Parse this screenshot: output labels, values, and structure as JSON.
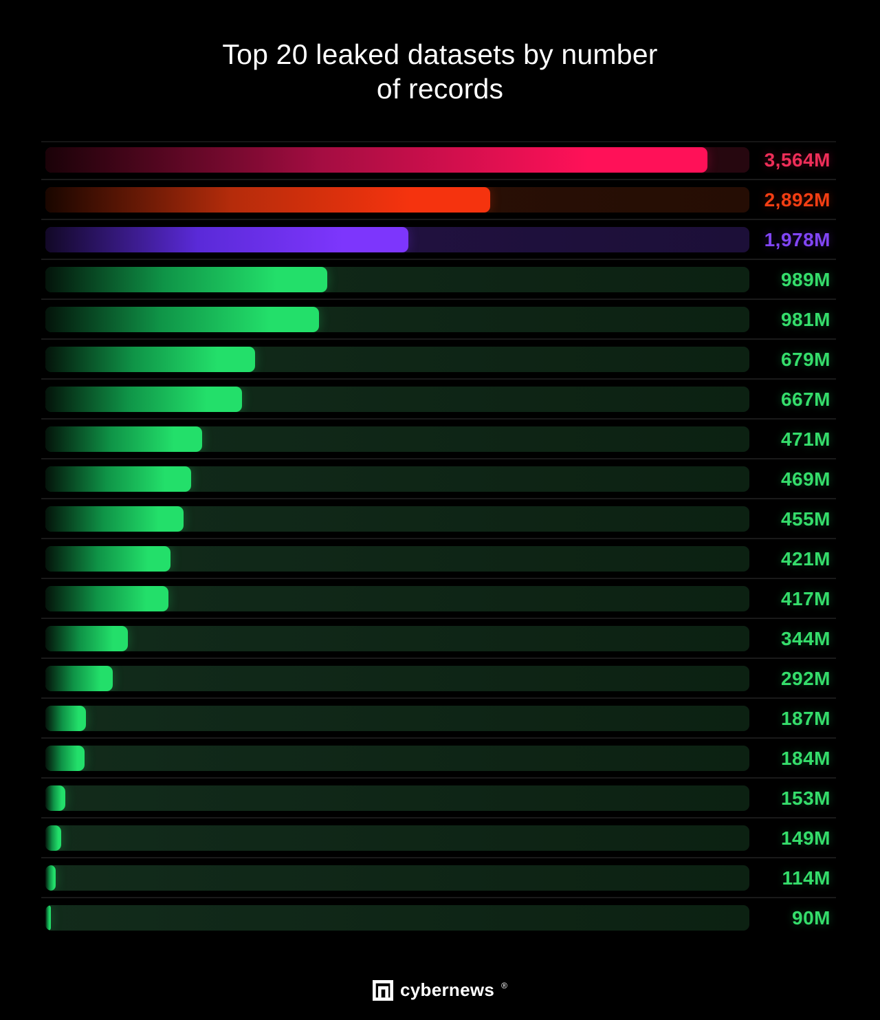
{
  "title": {
    "line1": "Top 20 leaked datasets by number",
    "line2": "of records"
  },
  "chart_data": {
    "type": "bar",
    "orientation": "horizontal",
    "title": "Top 20 leaked datasets by number of records",
    "value_unit": "M (millions of records)",
    "xlim": [
      0,
      3800
    ],
    "grid": false,
    "legend": false,
    "note": "Dataset names are not shown in the image; each bar is labeled only by its record count.",
    "items": [
      {
        "label": "3,564M",
        "value": 3564,
        "fill_pct": 94.0,
        "theme": "pink"
      },
      {
        "label": "2,892M",
        "value": 2892,
        "fill_pct": 63.2,
        "theme": "orange"
      },
      {
        "label": "1,978M",
        "value": 1978,
        "fill_pct": 51.6,
        "theme": "purple"
      },
      {
        "label": "989M",
        "value": 989,
        "fill_pct": 40.0,
        "theme": "green"
      },
      {
        "label": "981M",
        "value": 981,
        "fill_pct": 38.9,
        "theme": "green"
      },
      {
        "label": "679M",
        "value": 679,
        "fill_pct": 29.8,
        "theme": "green"
      },
      {
        "label": "667M",
        "value": 667,
        "fill_pct": 27.9,
        "theme": "green"
      },
      {
        "label": "471M",
        "value": 471,
        "fill_pct": 22.3,
        "theme": "green"
      },
      {
        "label": "469M",
        "value": 469,
        "fill_pct": 20.7,
        "theme": "green"
      },
      {
        "label": "455M",
        "value": 455,
        "fill_pct": 19.6,
        "theme": "green"
      },
      {
        "label": "421M",
        "value": 421,
        "fill_pct": 17.8,
        "theme": "green"
      },
      {
        "label": "417M",
        "value": 417,
        "fill_pct": 17.5,
        "theme": "green"
      },
      {
        "label": "344M",
        "value": 344,
        "fill_pct": 11.7,
        "theme": "green"
      },
      {
        "label": "292M",
        "value": 292,
        "fill_pct": 9.6,
        "theme": "green"
      },
      {
        "label": "187M",
        "value": 187,
        "fill_pct": 5.8,
        "theme": "green"
      },
      {
        "label": "184M",
        "value": 184,
        "fill_pct": 5.6,
        "theme": "green"
      },
      {
        "label": "153M",
        "value": 153,
        "fill_pct": 2.8,
        "theme": "green"
      },
      {
        "label": "149M",
        "value": 149,
        "fill_pct": 2.2,
        "theme": "green"
      },
      {
        "label": "114M",
        "value": 114,
        "fill_pct": 1.5,
        "theme": "green"
      },
      {
        "label": "90M",
        "value": 90,
        "fill_pct": 0.8,
        "theme": "green"
      }
    ]
  },
  "themes": {
    "pink": {
      "fill_start": "#1a0208",
      "fill_mid": "#a50d42",
      "fill_end": "#ff1158",
      "track_start": "#2f0a16",
      "track_end": "#26070f",
      "label": "#ee2e58",
      "glow": "rgba(255,17,88,0.30)"
    },
    "orange": {
      "fill_start": "#190600",
      "fill_mid": "#b52c0b",
      "fill_end": "#f5330e",
      "track_start": "#2d1207",
      "track_end": "#250d04",
      "label": "#f43e13",
      "glow": "rgba(245,51,14,0.30)"
    },
    "purple": {
      "fill_start": "#120826",
      "fill_mid": "#5a2ad8",
      "fill_end": "#7d36fc",
      "track_start": "#241345",
      "track_end": "#1c0f38",
      "label": "#8145f5",
      "glow": "rgba(125,54,252,0.30)"
    },
    "green": {
      "fill_start": "#04130a",
      "fill_mid": "#0f9447",
      "fill_end": "#23df6a",
      "track_start": "#122b1b",
      "track_end": "#0c2112",
      "label": "#35dd6b",
      "glow": "rgba(35,223,106,0.30)"
    }
  },
  "footer": {
    "brand": "cybernews",
    "reg": "®"
  }
}
